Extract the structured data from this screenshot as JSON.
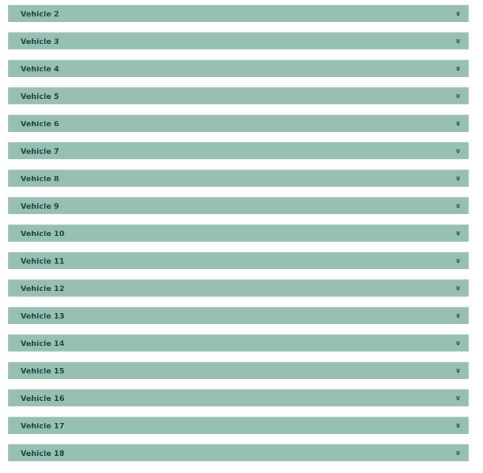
{
  "accordion": {
    "icon_name": "double-chevron-down-icon",
    "icon_glyph": "»",
    "colors": {
      "panel_background": "#97bfb2",
      "panel_border_top": "#aecdc2",
      "text": "#1d4646",
      "page_background": "#ffffff"
    },
    "panels": [
      {
        "label": "Vehicle 2"
      },
      {
        "label": "Vehicle 3"
      },
      {
        "label": "Vehicle 4"
      },
      {
        "label": "Vehicle 5"
      },
      {
        "label": "Vehicle 6"
      },
      {
        "label": "Vehicle 7"
      },
      {
        "label": "Vehicle 8"
      },
      {
        "label": "Vehicle 9"
      },
      {
        "label": "Vehicle 10"
      },
      {
        "label": "Vehicle 11"
      },
      {
        "label": "Vehicle 12"
      },
      {
        "label": "Vehicle 13"
      },
      {
        "label": "Vehicle 14"
      },
      {
        "label": "Vehicle 15"
      },
      {
        "label": "Vehicle 16"
      },
      {
        "label": "Vehicle 17"
      },
      {
        "label": "Vehicle 18"
      }
    ]
  }
}
